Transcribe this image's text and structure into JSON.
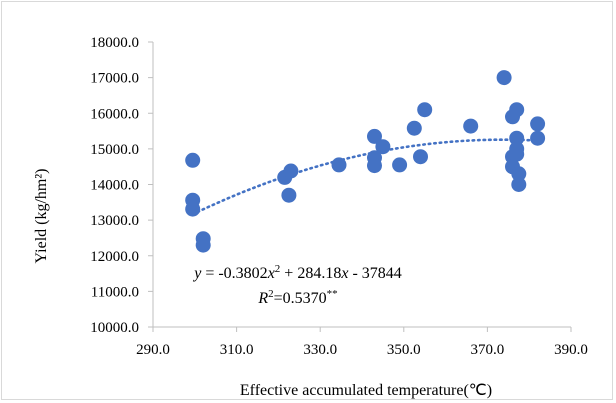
{
  "chart_data": {
    "type": "scatter",
    "xlabel": "Effective accumulated temperature(℃)",
    "ylabel": "Yield (kg/hm²)",
    "xlim": [
      290.0,
      390.0
    ],
    "ylim": [
      10000.0,
      18000.0
    ],
    "x_ticks": [
      "290.0",
      "310.0",
      "330.0",
      "350.0",
      "370.0",
      "390.0"
    ],
    "y_ticks": [
      "10000.0",
      "11000.0",
      "12000.0",
      "13000.0",
      "14000.0",
      "15000.0",
      "16000.0",
      "17000.0",
      "18000.0"
    ],
    "grid": false,
    "marker_color": "#4472c4",
    "trendline": {
      "type": "polynomial-2",
      "style": "dotted",
      "coefficients": {
        "a": -0.3802,
        "b": 284.18,
        "c": -37844
      },
      "equation_text": "y = -0.3802x² + 284.18x - 37844",
      "r2_text": "R²=0.5370**"
    },
    "points": [
      [
        299.5,
        14680
      ],
      [
        299.5,
        13560
      ],
      [
        299.5,
        13310
      ],
      [
        302.0,
        12480
      ],
      [
        302.0,
        12300
      ],
      [
        321.5,
        14200
      ],
      [
        322.5,
        13700
      ],
      [
        323.0,
        14380
      ],
      [
        334.5,
        14550
      ],
      [
        343.0,
        15350
      ],
      [
        343.0,
        14750
      ],
      [
        343.0,
        14530
      ],
      [
        345.0,
        15060
      ],
      [
        349.0,
        14550
      ],
      [
        352.5,
        15580
      ],
      [
        354.0,
        14780
      ],
      [
        355.0,
        16100
      ],
      [
        366.0,
        15640
      ],
      [
        374.0,
        17000
      ],
      [
        376.0,
        15900
      ],
      [
        376.0,
        14780
      ],
      [
        376.0,
        14500
      ],
      [
        377.0,
        16100
      ],
      [
        377.0,
        15300
      ],
      [
        377.0,
        15000
      ],
      [
        377.0,
        14850
      ],
      [
        377.5,
        14300
      ],
      [
        377.5,
        14000
      ],
      [
        382.0,
        15700
      ],
      [
        382.0,
        15300
      ]
    ]
  }
}
